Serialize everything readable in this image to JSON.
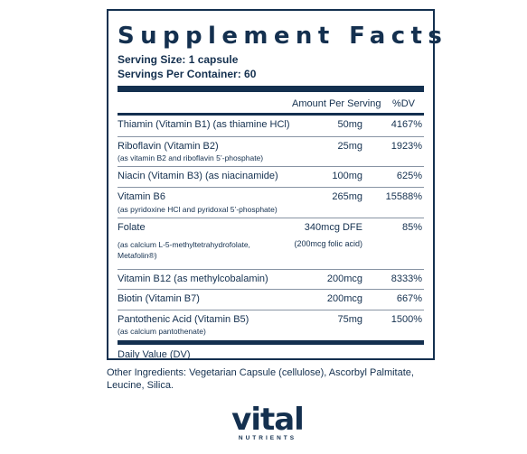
{
  "panel": {
    "title": "Supplement Facts",
    "serving_size": "Serving Size: 1 capsule",
    "servings_per_container": "Servings Per Container: 60",
    "column_amount": "Amount Per Serving",
    "column_dv": "%DV",
    "rows": [
      {
        "name": "Thiamin (Vitamin B1) (as thiamine HCl)",
        "sub": "",
        "sub2": "",
        "amount": "50mg",
        "amount2": "",
        "dv": "4167%"
      },
      {
        "name": "Riboflavin (Vitamin B2)",
        "sub": "(as vitamin B2 and riboflavin 5’-phosphate)",
        "sub2": "",
        "amount": "25mg",
        "amount2": "",
        "dv": "1923%"
      },
      {
        "name": "Niacin (Vitamin B3) (as niacinamide)",
        "sub": "",
        "sub2": "",
        "amount": "100mg",
        "amount2": "",
        "dv": "625%"
      },
      {
        "name": "Vitamin B6",
        "sub": "(as pyridoxine HCl and pyridoxal 5’-phosphate)",
        "sub2": "",
        "amount": "265mg",
        "amount2": "",
        "dv": "15588%"
      },
      {
        "name": "Folate",
        "sub": "(as calcium L-5-methyltetrahydrofolate,",
        "sub2": "Metafolin®)",
        "amount": "340mcg DFE",
        "amount2": "(200mcg folic acid)",
        "dv": "85%"
      },
      {
        "name": "Vitamin B12 (as methylcobalamin)",
        "sub": "",
        "sub2": "",
        "amount": "200mcg",
        "amount2": "",
        "dv": "8333%"
      },
      {
        "name": "Biotin (Vitamin B7)",
        "sub": "",
        "sub2": "",
        "amount": "200mcg",
        "amount2": "",
        "dv": "667%"
      },
      {
        "name": "Pantothenic Acid (Vitamin B5)",
        "sub": "(as calcium pantothenate)",
        "sub2": "",
        "amount": "75mg",
        "amount2": "",
        "dv": "1500%"
      }
    ],
    "footnote": "Daily Value (DV)"
  },
  "other_ingredients": "Other Ingredients: Vegetarian Capsule (cellulose), Ascorbyl Palmitate, Leucine, Silica.",
  "logo": {
    "word": "vital",
    "tagline": "NUTRIENTS"
  },
  "colors": {
    "ink": "#14304f",
    "rule_light": "#8894a4"
  }
}
